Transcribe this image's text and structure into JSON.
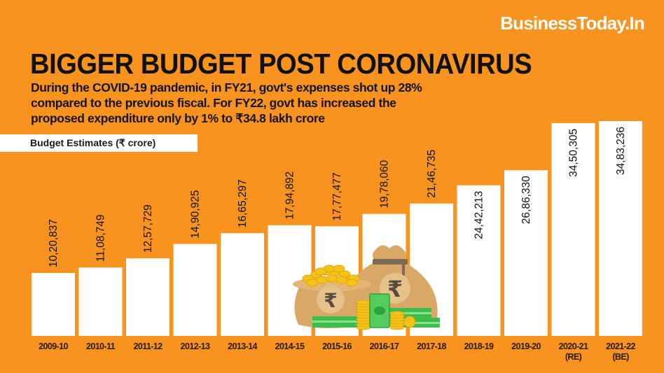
{
  "header": {
    "brand": "BusinessToday.In",
    "title": "BIGGER BUDGET POST CORONAVIRUS",
    "subtitle_lines": [
      "During the COVID-19 pandemic, in FY21, govt's expenses shot up 28%",
      "compared to the previous fiscal. For FY22, govt has increased the",
      "proposed expenditure only by 1% to ₹34.8 lakh crore"
    ]
  },
  "colors": {
    "background": "#F7931E",
    "bar": "#FFFFFF",
    "text": "#111111",
    "brand_text": "#FFFFFF"
  },
  "illustration": {
    "description": "money-bags-coins-and-banknotes",
    "currency_symbol": "₹"
  },
  "chart_data": {
    "type": "bar",
    "title": "BIGGER BUDGET POST CORONAVIRUS",
    "ylabel": "Budget Estimates (₹ crore)",
    "xlabel": "",
    "grid": false,
    "legend": "none",
    "ylim": [
      0,
      3483236
    ],
    "categories": [
      "2009-10",
      "2010-11",
      "2011-12",
      "2012-13",
      "2013-14",
      "2014-15",
      "2015-16",
      "2016-17",
      "2017-18",
      "2018-19",
      "2019-20",
      "2020-21 (RE)",
      "2021-22 (BE)"
    ],
    "category_lines": [
      [
        "2009-10"
      ],
      [
        "2010-11"
      ],
      [
        "2011-12"
      ],
      [
        "2012-13"
      ],
      [
        "2013-14"
      ],
      [
        "2014-15"
      ],
      [
        "2015-16"
      ],
      [
        "2016-17"
      ],
      [
        "2017-18"
      ],
      [
        "2018-19"
      ],
      [
        "2019-20"
      ],
      [
        "2020-21",
        "(RE)"
      ],
      [
        "2021-22",
        "(BE)"
      ]
    ],
    "values": [
      1020837,
      1108749,
      1257729,
      1490925,
      1665297,
      1794892,
      1777477,
      1978060,
      2146735,
      2442213,
      2686330,
      3450305,
      3483236
    ],
    "value_labels": [
      "10,20,837",
      "11,08,749",
      "12,57,729",
      "14,90,925",
      "16,65,297",
      "17,94,892",
      "17,77,477",
      "19,78,060",
      "21,46,735",
      "24,42,213",
      "26,86,330",
      "34,50,305",
      "34,83,236"
    ],
    "label_inside_from_index": 9
  }
}
